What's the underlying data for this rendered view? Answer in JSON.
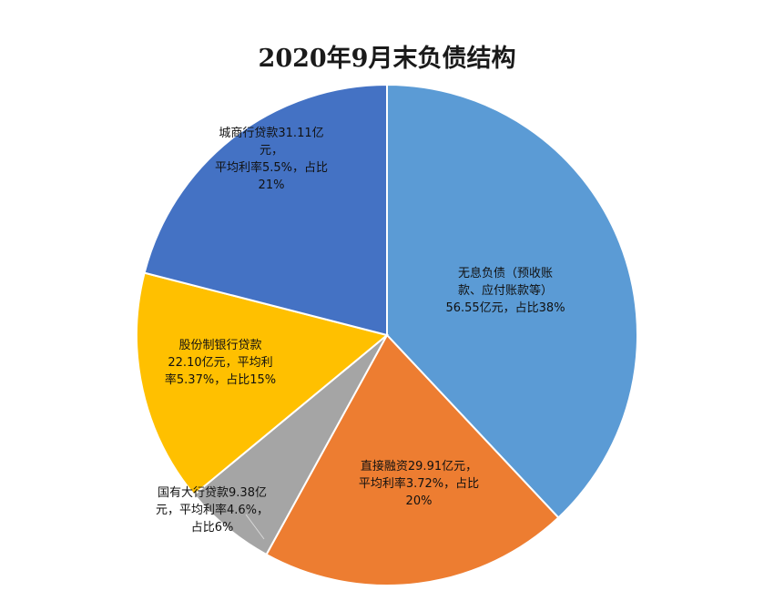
{
  "chart_data": {
    "type": "pie",
    "title": "2020年9月末负债结构",
    "slices": [
      {
        "value": 38,
        "color": "#5b9bd5",
        "label_lines": [
          "无息负债（预收账",
          "款、应付账款等）",
          "56.55亿元，占比38%"
        ]
      },
      {
        "value": 20,
        "color": "#ed7d31",
        "label_lines": [
          "直接融资29.91亿元，",
          "平均利率3.72%，占比",
          "20%"
        ]
      },
      {
        "value": 6,
        "color": "#a5a5a5",
        "label_lines": [
          "国有大行贷款9.38亿",
          "元，平均利率4.6%，",
          "占比6%"
        ]
      },
      {
        "value": 15,
        "color": "#ffc000",
        "label_lines": [
          "股份制银行贷款",
          "22.10亿元，平均利",
          "率5.37%，占比15%"
        ]
      },
      {
        "value": 21,
        "color": "#4472c4",
        "label_lines": [
          "城商行贷款31.11亿",
          "元，",
          "平均利率5.5%，占比",
          "21%"
        ]
      }
    ]
  }
}
